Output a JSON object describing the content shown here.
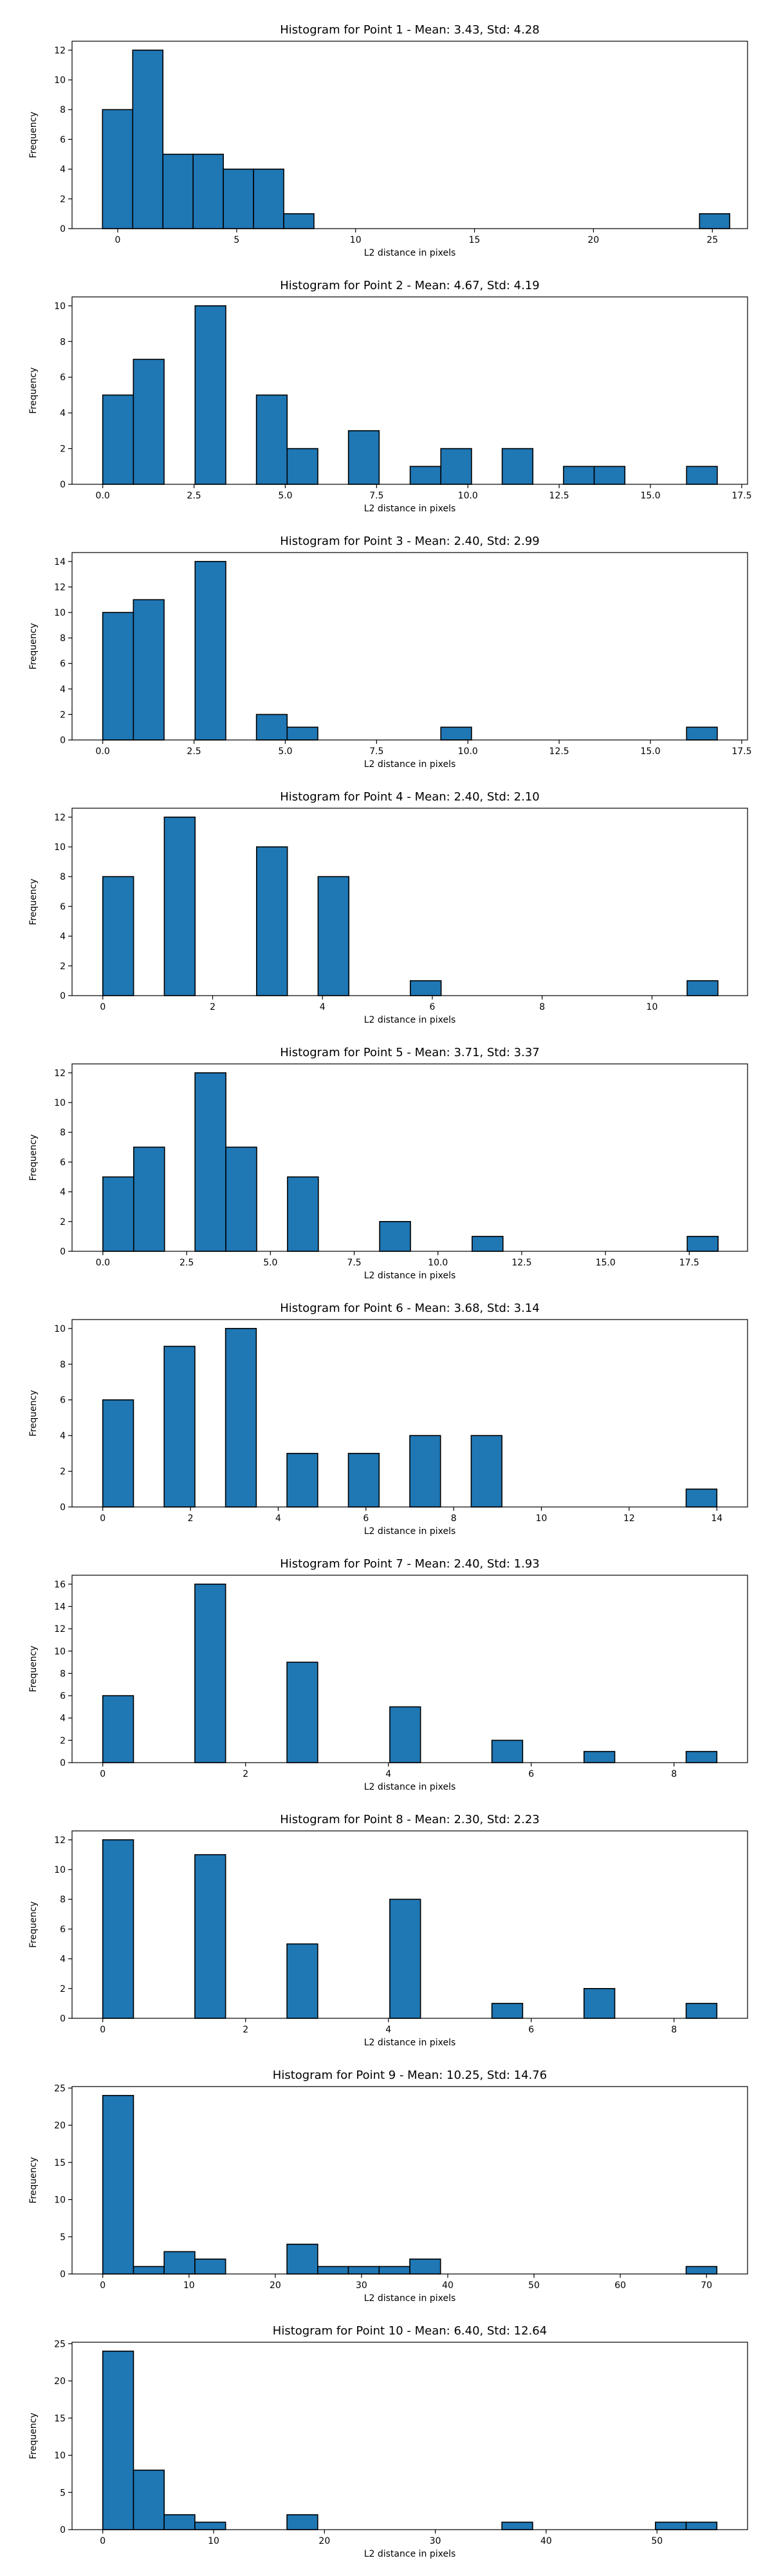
{
  "chart_data": [
    {
      "type": "bar",
      "title": "Histogram for Point 1 - Mean: 3.43, Std: 4.28",
      "xlabel": "L2 distance in pixels",
      "ylabel": "Frequency",
      "bin_edges": [
        -0.64,
        1.24,
        3.12,
        5.0,
        6.88,
        8.76
      ],
      "x_extra_bins": [
        [
          7.48,
          8.75
        ],
        [
          23.9,
          25.2
        ]
      ],
      "xlim": [
        -1.92,
        26.48
      ],
      "ylim": [
        0,
        12.6
      ],
      "xticks": [
        0,
        5,
        10,
        15,
        20,
        25
      ],
      "yticks": [
        0,
        2,
        4,
        6,
        8,
        10,
        12
      ],
      "bars": [
        {
          "x0": -0.64,
          "x1": 0.63,
          "count": 8
        },
        {
          "x0": 0.63,
          "x1": 1.9,
          "count": 12
        },
        {
          "x0": 1.9,
          "x1": 3.17,
          "count": 5
        },
        {
          "x0": 3.17,
          "x1": 4.44,
          "count": 5
        },
        {
          "x0": 4.44,
          "x1": 5.71,
          "count": 4
        },
        {
          "x0": 5.71,
          "x1": 6.98,
          "count": 4
        },
        {
          "x0": 6.98,
          "x1": 8.25,
          "count": 1
        },
        {
          "x0": 24.46,
          "x1": 25.73,
          "count": 1
        }
      ],
      "color": "#1f77b4",
      "grid": false
    },
    {
      "type": "bar",
      "title": "Histogram for Point 2 - Mean: 4.67, Std: 4.19",
      "xlabel": "L2 distance in pixels",
      "ylabel": "Frequency",
      "xlim": [
        -0.84,
        17.66
      ],
      "ylim": [
        0,
        10.5
      ],
      "xticks": [
        0.0,
        2.5,
        5.0,
        7.5,
        10.0,
        12.5,
        15.0,
        17.5
      ],
      "yticks": [
        0,
        2,
        4,
        6,
        8,
        10
      ],
      "bars": [
        {
          "x0": 0.0,
          "x1": 0.84,
          "count": 5
        },
        {
          "x0": 0.84,
          "x1": 1.68,
          "count": 7
        },
        {
          "x0": 2.53,
          "x1": 3.37,
          "count": 10
        },
        {
          "x0": 4.21,
          "x1": 5.05,
          "count": 5
        },
        {
          "x0": 5.05,
          "x1": 5.89,
          "count": 2
        },
        {
          "x0": 6.73,
          "x1": 7.57,
          "count": 3
        },
        {
          "x0": 8.42,
          "x1": 9.26,
          "count": 1
        },
        {
          "x0": 9.26,
          "x1": 10.1,
          "count": 2
        },
        {
          "x0": 10.94,
          "x1": 11.78,
          "count": 2
        },
        {
          "x0": 12.62,
          "x1": 13.46,
          "count": 1
        },
        {
          "x0": 13.46,
          "x1": 14.3,
          "count": 1
        },
        {
          "x0": 15.99,
          "x1": 16.83,
          "count": 1
        }
      ],
      "color": "#1f77b4",
      "grid": false
    },
    {
      "type": "bar",
      "title": "Histogram for Point 3 - Mean: 2.40, Std: 2.99",
      "xlabel": "L2 distance in pixels",
      "ylabel": "Frequency",
      "xlim": [
        -0.84,
        17.66
      ],
      "ylim": [
        0,
        14.7
      ],
      "xticks": [
        0.0,
        2.5,
        5.0,
        7.5,
        10.0,
        12.5,
        15.0,
        17.5
      ],
      "yticks": [
        0,
        2,
        4,
        6,
        8,
        10,
        12,
        14
      ],
      "bars": [
        {
          "x0": 0.0,
          "x1": 0.84,
          "count": 10
        },
        {
          "x0": 0.84,
          "x1": 1.68,
          "count": 11
        },
        {
          "x0": 2.53,
          "x1": 3.37,
          "count": 14
        },
        {
          "x0": 4.21,
          "x1": 5.05,
          "count": 2
        },
        {
          "x0": 5.05,
          "x1": 5.89,
          "count": 1
        },
        {
          "x0": 9.26,
          "x1": 10.1,
          "count": 1
        },
        {
          "x0": 15.99,
          "x1": 16.83,
          "count": 1
        }
      ],
      "color": "#1f77b4",
      "grid": false
    },
    {
      "type": "bar",
      "title": "Histogram for Point 4 - Mean: 2.40, Std: 2.10",
      "xlabel": "L2 distance in pixels",
      "ylabel": "Frequency",
      "xlim": [
        -0.56,
        11.74
      ],
      "ylim": [
        0,
        12.6
      ],
      "xticks": [
        0,
        2,
        4,
        6,
        8,
        10
      ],
      "yticks": [
        0,
        2,
        4,
        6,
        8,
        10,
        12
      ],
      "bars": [
        {
          "x0": 0.0,
          "x1": 0.56,
          "count": 8
        },
        {
          "x0": 1.12,
          "x1": 1.68,
          "count": 12
        },
        {
          "x0": 2.8,
          "x1": 3.36,
          "count": 10
        },
        {
          "x0": 3.92,
          "x1": 4.48,
          "count": 8
        },
        {
          "x0": 5.6,
          "x1": 6.16,
          "count": 1
        },
        {
          "x0": 10.64,
          "x1": 11.2,
          "count": 1
        }
      ],
      "color": "#1f77b4",
      "grid": false
    },
    {
      "type": "bar",
      "title": "Histogram for Point 5 - Mean: 3.71, Std: 3.37",
      "xlabel": "L2 distance in pixels",
      "ylabel": "Frequency",
      "xlim": [
        -0.92,
        19.24
      ],
      "ylim": [
        0,
        12.6
      ],
      "xticks": [
        0.0,
        2.5,
        5.0,
        7.5,
        10.0,
        12.5,
        15.0,
        17.5
      ],
      "yticks": [
        0,
        2,
        4,
        6,
        8,
        10,
        12
      ],
      "bars": [
        {
          "x0": 0.0,
          "x1": 0.92,
          "count": 5
        },
        {
          "x0": 0.92,
          "x1": 1.84,
          "count": 7
        },
        {
          "x0": 2.75,
          "x1": 3.67,
          "count": 12
        },
        {
          "x0": 3.67,
          "x1": 4.59,
          "count": 7
        },
        {
          "x0": 5.51,
          "x1": 6.43,
          "count": 5
        },
        {
          "x0": 8.26,
          "x1": 9.18,
          "count": 2
        },
        {
          "x0": 11.02,
          "x1": 11.94,
          "count": 1
        },
        {
          "x0": 17.44,
          "x1": 18.36,
          "count": 1
        }
      ],
      "color": "#1f77b4",
      "grid": false
    },
    {
      "type": "bar",
      "title": "Histogram for Point 6 - Mean: 3.68, Std: 3.14",
      "xlabel": "L2 distance in pixels",
      "ylabel": "Frequency",
      "xlim": [
        -0.7,
        14.7
      ],
      "ylim": [
        0,
        10.5
      ],
      "xticks": [
        0,
        2,
        4,
        6,
        8,
        10,
        12,
        14
      ],
      "yticks": [
        0,
        2,
        4,
        6,
        8,
        10
      ],
      "bars": [
        {
          "x0": 0.0,
          "x1": 0.7,
          "count": 6
        },
        {
          "x0": 1.4,
          "x1": 2.1,
          "count": 9
        },
        {
          "x0": 2.8,
          "x1": 3.5,
          "count": 10
        },
        {
          "x0": 4.2,
          "x1": 4.9,
          "count": 3
        },
        {
          "x0": 5.6,
          "x1": 6.3,
          "count": 3
        },
        {
          "x0": 7.0,
          "x1": 7.7,
          "count": 4
        },
        {
          "x0": 8.4,
          "x1": 9.1,
          "count": 4
        },
        {
          "x0": 13.3,
          "x1": 14.0,
          "count": 1
        }
      ],
      "color": "#1f77b4",
      "grid": false
    },
    {
      "type": "bar",
      "title": "Histogram for Point 7 - Mean: 2.40, Std: 1.93",
      "xlabel": "L2 distance in pixels",
      "ylabel": "Frequency",
      "xlim": [
        -0.43,
        9.03
      ],
      "ylim": [
        0,
        16.8
      ],
      "xticks": [
        0,
        2,
        4,
        6,
        8
      ],
      "yticks": [
        0,
        2,
        4,
        6,
        8,
        10,
        12,
        14,
        16
      ],
      "bars": [
        {
          "x0": 0.0,
          "x1": 0.43,
          "count": 6
        },
        {
          "x0": 1.29,
          "x1": 1.72,
          "count": 16
        },
        {
          "x0": 2.58,
          "x1": 3.01,
          "count": 9
        },
        {
          "x0": 4.02,
          "x1": 4.45,
          "count": 5
        },
        {
          "x0": 5.45,
          "x1": 5.88,
          "count": 2
        },
        {
          "x0": 6.74,
          "x1": 7.17,
          "count": 1
        },
        {
          "x0": 8.17,
          "x1": 8.6,
          "count": 1
        }
      ],
      "color": "#1f77b4",
      "grid": false
    },
    {
      "type": "bar",
      "title": "Histogram for Point 8 - Mean: 2.30, Std: 2.23",
      "xlabel": "L2 distance in pixels",
      "ylabel": "Frequency",
      "xlim": [
        -0.43,
        9.03
      ],
      "ylim": [
        0,
        12.6
      ],
      "xticks": [
        0,
        2,
        4,
        6,
        8
      ],
      "yticks": [
        0,
        2,
        4,
        6,
        8,
        10,
        12
      ],
      "bars": [
        {
          "x0": 0.0,
          "x1": 0.43,
          "count": 12
        },
        {
          "x0": 1.29,
          "x1": 1.72,
          "count": 11
        },
        {
          "x0": 2.58,
          "x1": 3.01,
          "count": 5
        },
        {
          "x0": 4.02,
          "x1": 4.45,
          "count": 8
        },
        {
          "x0": 5.45,
          "x1": 5.88,
          "count": 1
        },
        {
          "x0": 6.74,
          "x1": 7.17,
          "count": 2
        },
        {
          "x0": 8.17,
          "x1": 8.6,
          "count": 1
        }
      ],
      "color": "#1f77b4",
      "grid": false
    },
    {
      "type": "bar",
      "title": "Histogram for Point 9 - Mean: 10.25, Std: 14.76",
      "xlabel": "L2 distance in pixels",
      "ylabel": "Frequency",
      "xlim": [
        -3.56,
        74.76
      ],
      "ylim": [
        0,
        25.2
      ],
      "xticks": [
        0,
        10,
        20,
        30,
        40,
        50,
        60,
        70
      ],
      "yticks": [
        0,
        5,
        10,
        15,
        20,
        25
      ],
      "bars": [
        {
          "x0": 0.0,
          "x1": 3.56,
          "count": 24
        },
        {
          "x0": 3.56,
          "x1": 7.12,
          "count": 1
        },
        {
          "x0": 7.12,
          "x1": 10.68,
          "count": 3
        },
        {
          "x0": 10.68,
          "x1": 14.24,
          "count": 2
        },
        {
          "x0": 21.36,
          "x1": 24.92,
          "count": 4
        },
        {
          "x0": 24.92,
          "x1": 28.48,
          "count": 1
        },
        {
          "x0": 28.48,
          "x1": 32.04,
          "count": 1
        },
        {
          "x0": 32.04,
          "x1": 35.6,
          "count": 1
        },
        {
          "x0": 35.6,
          "x1": 39.16,
          "count": 2
        },
        {
          "x0": 67.64,
          "x1": 71.2,
          "count": 1
        }
      ],
      "color": "#1f77b4",
      "grid": false
    },
    {
      "type": "bar",
      "title": "Histogram for Point 10 - Mean: 6.40, Std: 12.64",
      "xlabel": "L2 distance in pixels",
      "ylabel": "Frequency",
      "xlim": [
        -2.77,
        58.17
      ],
      "ylim": [
        0,
        25.2
      ],
      "xticks": [
        0,
        10,
        20,
        30,
        40,
        50
      ],
      "yticks": [
        0,
        5,
        10,
        15,
        20,
        25
      ],
      "bars": [
        {
          "x0": 0.0,
          "x1": 2.77,
          "count": 24
        },
        {
          "x0": 2.77,
          "x1": 5.54,
          "count": 8
        },
        {
          "x0": 5.54,
          "x1": 8.31,
          "count": 2
        },
        {
          "x0": 8.31,
          "x1": 11.08,
          "count": 1
        },
        {
          "x0": 16.62,
          "x1": 19.39,
          "count": 2
        },
        {
          "x0": 36.01,
          "x1": 38.78,
          "count": 1
        },
        {
          "x0": 49.86,
          "x1": 52.63,
          "count": 1
        },
        {
          "x0": 52.63,
          "x1": 55.4,
          "count": 1
        }
      ],
      "color": "#1f77b4",
      "grid": false
    }
  ]
}
